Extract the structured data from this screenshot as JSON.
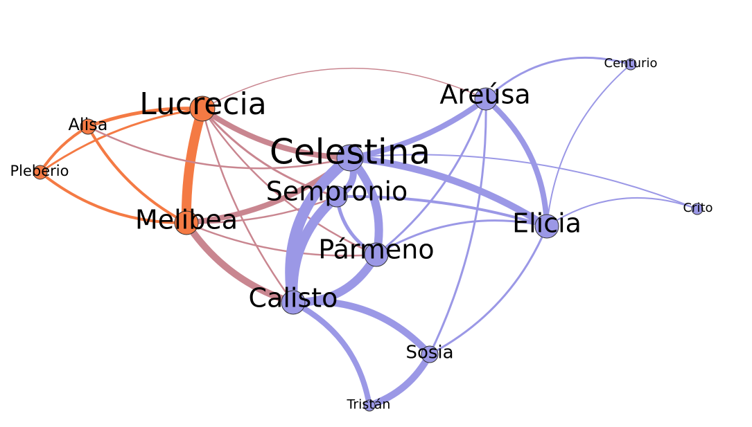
{
  "colors": {
    "orange": "#f47a44",
    "purple": "#9b98e6",
    "mauve": "#c98690",
    "outline": "#333333"
  },
  "nodes": [
    {
      "id": "lucrecia",
      "label": "Lucrecia",
      "group": "orange"
    },
    {
      "id": "alisa",
      "label": "Alisa",
      "group": "orange"
    },
    {
      "id": "pleberio",
      "label": "Pleberio",
      "group": "orange"
    },
    {
      "id": "melibea",
      "label": "Melibea",
      "group": "orange"
    },
    {
      "id": "celestina",
      "label": "Celestina",
      "group": "purple"
    },
    {
      "id": "sempronio",
      "label": "Sempronio",
      "group": "purple"
    },
    {
      "id": "parmeno",
      "label": "Pármeno",
      "group": "purple"
    },
    {
      "id": "calisto",
      "label": "Calisto",
      "group": "purple"
    },
    {
      "id": "areusa",
      "label": "Areúsa",
      "group": "purple"
    },
    {
      "id": "elicia",
      "label": "Elicia",
      "group": "purple"
    },
    {
      "id": "centurio",
      "label": "Centurio",
      "group": "purple"
    },
    {
      "id": "crito",
      "label": "Crito",
      "group": "purple"
    },
    {
      "id": "sosia",
      "label": "Sosia",
      "group": "purple"
    },
    {
      "id": "tristan",
      "label": "Tristán",
      "group": "purple"
    }
  ],
  "edges": [
    {
      "source": "lucrecia",
      "target": "melibea",
      "color": "orange"
    },
    {
      "source": "lucrecia",
      "target": "alisa",
      "color": "orange"
    },
    {
      "source": "lucrecia",
      "target": "pleberio",
      "color": "orange"
    },
    {
      "source": "alisa",
      "target": "pleberio",
      "color": "orange"
    },
    {
      "source": "alisa",
      "target": "melibea",
      "color": "orange"
    },
    {
      "source": "pleberio",
      "target": "melibea",
      "color": "orange"
    },
    {
      "source": "alisa",
      "target": "celestina",
      "color": "mauve"
    },
    {
      "source": "lucrecia",
      "target": "celestina",
      "color": "mauve"
    },
    {
      "source": "lucrecia",
      "target": "sempronio",
      "color": "mauve"
    },
    {
      "source": "lucrecia",
      "target": "parmeno",
      "color": "mauve"
    },
    {
      "source": "lucrecia",
      "target": "calisto",
      "color": "mauve"
    },
    {
      "source": "lucrecia",
      "target": "areusa",
      "color": "mauve"
    },
    {
      "source": "melibea",
      "target": "celestina",
      "color": "mauve"
    },
    {
      "source": "melibea",
      "target": "calisto",
      "color": "mauve"
    },
    {
      "source": "melibea",
      "target": "parmeno",
      "color": "mauve"
    },
    {
      "source": "melibea",
      "target": "sempronio",
      "color": "mauve"
    },
    {
      "source": "celestina",
      "target": "calisto",
      "color": "purple"
    },
    {
      "source": "celestina",
      "target": "parmeno",
      "color": "purple"
    },
    {
      "source": "celestina",
      "target": "sempronio",
      "color": "purple"
    },
    {
      "source": "celestina",
      "target": "elicia",
      "color": "purple"
    },
    {
      "source": "celestina",
      "target": "areusa",
      "color": "purple"
    },
    {
      "source": "celestina",
      "target": "crito",
      "color": "purple"
    },
    {
      "source": "sempronio",
      "target": "calisto",
      "color": "purple"
    },
    {
      "source": "sempronio",
      "target": "parmeno",
      "color": "purple"
    },
    {
      "source": "sempronio",
      "target": "elicia",
      "color": "purple"
    },
    {
      "source": "parmeno",
      "target": "calisto",
      "color": "purple"
    },
    {
      "source": "parmeno",
      "target": "elicia",
      "color": "purple"
    },
    {
      "source": "parmeno",
      "target": "areusa",
      "color": "purple"
    },
    {
      "source": "calisto",
      "target": "sosia",
      "color": "purple"
    },
    {
      "source": "calisto",
      "target": "tristan",
      "color": "purple"
    },
    {
      "source": "sosia",
      "target": "tristan",
      "color": "purple"
    },
    {
      "source": "sosia",
      "target": "areusa",
      "color": "purple"
    },
    {
      "source": "sosia",
      "target": "elicia",
      "color": "purple"
    },
    {
      "source": "areusa",
      "target": "elicia",
      "color": "purple"
    },
    {
      "source": "areusa",
      "target": "centurio",
      "color": "purple"
    },
    {
      "source": "elicia",
      "target": "centurio",
      "color": "purple"
    },
    {
      "source": "elicia",
      "target": "crito",
      "color": "purple"
    }
  ]
}
